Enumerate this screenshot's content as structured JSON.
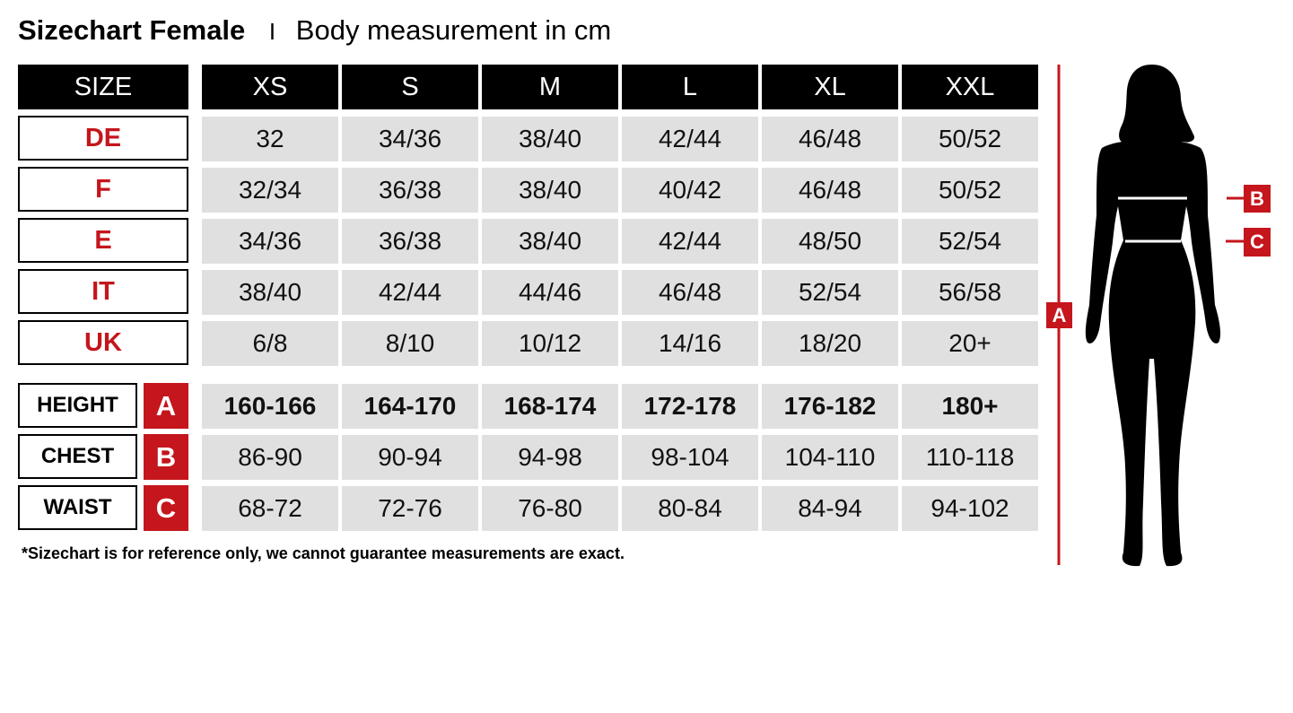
{
  "title": {
    "bold": "Sizechart Female",
    "separator": "I",
    "subtitle": "Body measurement in cm"
  },
  "colors": {
    "accent": "#c4161c",
    "cell_bg": "#e0e0e0",
    "header_bg": "#000000"
  },
  "header": {
    "label": "SIZE",
    "sizes": [
      "XS",
      "S",
      "M",
      "L",
      "XL",
      "XXL"
    ]
  },
  "conversion_rows": [
    {
      "label": "DE",
      "values": [
        "32",
        "34/36",
        "38/40",
        "42/44",
        "46/48",
        "50/52"
      ]
    },
    {
      "label": "F",
      "values": [
        "32/34",
        "36/38",
        "38/40",
        "40/42",
        "46/48",
        "50/52"
      ]
    },
    {
      "label": "E",
      "values": [
        "34/36",
        "36/38",
        "38/40",
        "42/44",
        "48/50",
        "52/54"
      ]
    },
    {
      "label": "IT",
      "values": [
        "38/40",
        "42/44",
        "44/46",
        "46/48",
        "52/54",
        "56/58"
      ]
    },
    {
      "label": "UK",
      "values": [
        "6/8",
        "8/10",
        "10/12",
        "14/16",
        "18/20",
        "20+"
      ]
    }
  ],
  "measurement_rows": [
    {
      "label": "HEIGHT",
      "letter": "A",
      "values": [
        "160-166",
        "164-170",
        "168-174",
        "172-178",
        "176-182",
        "180+"
      ]
    },
    {
      "label": "CHEST",
      "letter": "B",
      "values": [
        "86-90",
        "90-94",
        "94-98",
        "98-104",
        "104-110",
        "110-118"
      ]
    },
    {
      "label": "WAIST",
      "letter": "C",
      "values": [
        "68-72",
        "72-76",
        "76-80",
        "80-84",
        "84-94",
        "94-102"
      ]
    }
  ],
  "note": "*Sizechart is for reference only, we cannot guarantee measurements are exact.",
  "figure": {
    "height_marker": "A",
    "chest_marker": "B",
    "waist_marker": "C"
  }
}
